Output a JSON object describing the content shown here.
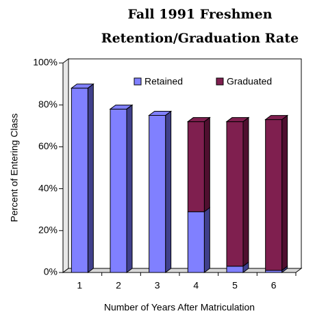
{
  "chart_data": {
    "type": "stacked_bar_3d",
    "title": [
      "Fall 1991 Freshmen",
      "Retention/Graduation Rate"
    ],
    "x_label": "Number of Years After Matriculation",
    "y_label": "Percent of Entering Class",
    "categories": [
      "1",
      "2",
      "3",
      "4",
      "5",
      "6"
    ],
    "series": [
      {
        "name": "Retained",
        "color": "#8080ff",
        "side_color": "#40408c",
        "values": [
          88,
          78,
          75,
          29,
          3,
          1
        ]
      },
      {
        "name": "Graduated",
        "color": "#7f1f4f",
        "side_color": "#4f0f2f",
        "values": [
          0,
          0,
          0,
          43,
          69,
          72
        ]
      }
    ],
    "ylim": [
      0,
      100
    ],
    "yticks": [
      {
        "value": 0,
        "label": "0%"
      },
      {
        "value": 20,
        "label": "20%"
      },
      {
        "value": 40,
        "label": "40%"
      },
      {
        "value": 60,
        "label": "60%"
      },
      {
        "value": 80,
        "label": "80%"
      },
      {
        "value": 100,
        "label": "100%"
      }
    ],
    "legend": "top"
  }
}
